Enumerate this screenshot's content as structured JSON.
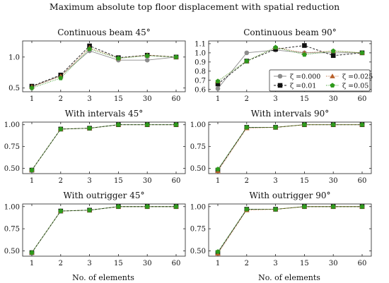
{
  "figure": {
    "suptitle": "Maximum absolute top floor displacement with spatial reduction",
    "xlabel": "No. of elements"
  },
  "legend": {
    "entries": [
      {
        "label": "ζ =0.000",
        "marker": "circle",
        "color": "#8c8c8c",
        "linestyle": "solid"
      },
      {
        "label": "ζ =0.025",
        "marker": "triangle",
        "color": "#b8602a",
        "linestyle": "dotted"
      },
      {
        "label": "ζ =0.01",
        "marker": "square",
        "color": "#111111",
        "linestyle": "dashed"
      },
      {
        "label": "ζ =0.05",
        "marker": "pentagon",
        "color": "#2e9a1c",
        "linestyle": "dotted"
      }
    ]
  },
  "chart_data": [
    {
      "type": "line",
      "title": "Continuous beam 45°",
      "categories": [
        "1",
        "2",
        "3",
        "15",
        "30",
        "60"
      ],
      "ylim": [
        0.44,
        1.26
      ],
      "yticks": [
        0.5,
        1.0
      ],
      "ytick_labels": [
        "0.5",
        "1.0"
      ],
      "series": [
        {
          "name": "ζ =0.000",
          "values": [
            0.52,
            0.7,
            1.1,
            0.95,
            0.95,
            1.0
          ]
        },
        {
          "name": "ζ =0.01",
          "values": [
            0.53,
            0.71,
            1.18,
            0.99,
            1.03,
            1.0
          ]
        },
        {
          "name": "ζ =0.025",
          "values": [
            0.52,
            0.69,
            1.15,
            0.98,
            1.03,
            1.0
          ]
        },
        {
          "name": "ζ =0.05",
          "values": [
            0.5,
            0.66,
            1.13,
            0.98,
            1.02,
            1.0
          ]
        }
      ]
    },
    {
      "type": "line",
      "title": "Continuous beam 90°",
      "categories": [
        "1",
        "2",
        "3",
        "15",
        "30",
        "60"
      ],
      "ylim": [
        0.575,
        1.13
      ],
      "yticks": [
        0.6,
        0.7,
        0.8,
        0.9,
        1.0,
        1.1
      ],
      "ytick_labels": [
        "0.6",
        "0.7",
        "0.8",
        "0.9",
        "1.0",
        "1.1"
      ],
      "show_legend": true,
      "legend_loc": "lower right",
      "series": [
        {
          "name": "ζ =0.000",
          "values": [
            0.61,
            1.0,
            1.03,
            1.0,
            1.0,
            1.0
          ]
        },
        {
          "name": "ζ =0.01",
          "values": [
            0.66,
            0.91,
            1.04,
            1.08,
            0.97,
            1.0
          ]
        },
        {
          "name": "ζ =0.025",
          "values": [
            0.69,
            0.91,
            1.06,
            1.0,
            1.02,
            1.0
          ]
        },
        {
          "name": "ζ =0.05",
          "values": [
            0.69,
            0.91,
            1.06,
            0.98,
            1.02,
            1.0
          ]
        }
      ]
    },
    {
      "type": "line",
      "title": "With intervals 45°",
      "categories": [
        "1",
        "2",
        "3",
        "15",
        "30",
        "60"
      ],
      "ylim": [
        0.44,
        1.03
      ],
      "yticks": [
        0.5,
        0.75,
        1.0
      ],
      "ytick_labels": [
        "0.50",
        "0.75",
        "1.00"
      ],
      "series": [
        {
          "name": "ζ =0.000",
          "values": [
            0.48,
            0.95,
            0.96,
            1.0,
            1.0,
            1.0
          ]
        },
        {
          "name": "ζ =0.01",
          "values": [
            0.48,
            0.95,
            0.96,
            1.0,
            1.0,
            1.0
          ]
        },
        {
          "name": "ζ =0.025",
          "values": [
            0.48,
            0.95,
            0.96,
            1.0,
            1.0,
            1.0
          ]
        },
        {
          "name": "ζ =0.05",
          "values": [
            0.48,
            0.95,
            0.96,
            1.0,
            1.0,
            1.0
          ]
        }
      ]
    },
    {
      "type": "line",
      "title": "With intervals 90°",
      "categories": [
        "1",
        "2",
        "3",
        "15",
        "30",
        "60"
      ],
      "ylim": [
        0.44,
        1.03
      ],
      "yticks": [
        0.5,
        0.75,
        1.0
      ],
      "ytick_labels": [
        "0.50",
        "0.75",
        "1.00"
      ],
      "series": [
        {
          "name": "ζ =0.000",
          "values": [
            0.48,
            0.97,
            0.97,
            1.0,
            1.0,
            1.0
          ]
        },
        {
          "name": "ζ =0.01",
          "values": [
            0.48,
            0.97,
            0.97,
            1.0,
            1.0,
            1.0
          ]
        },
        {
          "name": "ζ =0.025",
          "values": [
            0.47,
            0.96,
            0.97,
            1.0,
            1.0,
            1.0
          ]
        },
        {
          "name": "ζ =0.05",
          "values": [
            0.49,
            0.97,
            0.97,
            1.0,
            1.0,
            1.0
          ]
        }
      ]
    },
    {
      "type": "line",
      "title": "With outrigger 45°",
      "categories": [
        "1",
        "2",
        "3",
        "15",
        "30",
        "60"
      ],
      "ylim": [
        0.44,
        1.03
      ],
      "yticks": [
        0.5,
        0.75,
        1.0
      ],
      "ytick_labels": [
        "0.50",
        "0.75",
        "1.00"
      ],
      "series": [
        {
          "name": "ζ =0.000",
          "values": [
            0.48,
            0.95,
            0.96,
            1.0,
            1.0,
            1.0
          ]
        },
        {
          "name": "ζ =0.01",
          "values": [
            0.48,
            0.95,
            0.96,
            1.0,
            1.0,
            1.0
          ]
        },
        {
          "name": "ζ =0.025",
          "values": [
            0.48,
            0.95,
            0.96,
            1.0,
            1.0,
            1.0
          ]
        },
        {
          "name": "ζ =0.05",
          "values": [
            0.48,
            0.95,
            0.96,
            1.0,
            1.0,
            1.0
          ]
        }
      ]
    },
    {
      "type": "line",
      "title": "With outrigger 90°",
      "categories": [
        "1",
        "2",
        "3",
        "15",
        "30",
        "60"
      ],
      "ylim": [
        0.44,
        1.03
      ],
      "yticks": [
        0.5,
        0.75,
        1.0
      ],
      "ytick_labels": [
        "0.50",
        "0.75",
        "1.00"
      ],
      "series": [
        {
          "name": "ζ =0.000",
          "values": [
            0.48,
            0.97,
            0.97,
            1.0,
            1.0,
            1.0
          ]
        },
        {
          "name": "ζ =0.01",
          "values": [
            0.48,
            0.97,
            0.97,
            1.0,
            1.0,
            1.0
          ]
        },
        {
          "name": "ζ =0.025",
          "values": [
            0.47,
            0.96,
            0.97,
            1.0,
            1.0,
            1.0
          ]
        },
        {
          "name": "ζ =0.05",
          "values": [
            0.49,
            0.97,
            0.97,
            1.0,
            1.0,
            1.0
          ]
        }
      ]
    }
  ]
}
